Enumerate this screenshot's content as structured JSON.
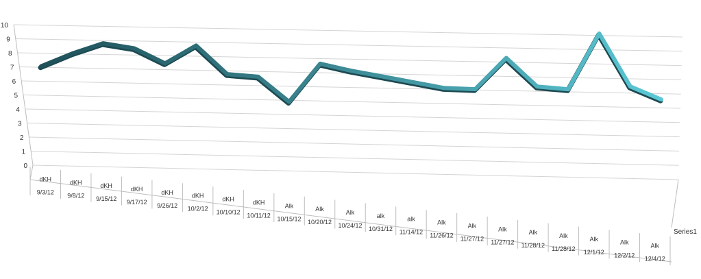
{
  "chart_data": {
    "type": "line",
    "ylim": [
      0,
      10
    ],
    "yticks": [
      "0",
      "1",
      "2",
      "3",
      "4",
      "5",
      "6",
      "7",
      "8",
      "9",
      "10"
    ],
    "grid": true,
    "categories": [
      {
        "top": "dKH",
        "bottom": "9/3/12"
      },
      {
        "top": "dKH",
        "bottom": "9/8/12"
      },
      {
        "top": "dKH",
        "bottom": "9/15/12"
      },
      {
        "top": "dKH",
        "bottom": "9/17/12"
      },
      {
        "top": "dKH",
        "bottom": "9/26/12"
      },
      {
        "top": "dKH",
        "bottom": "10/2/12"
      },
      {
        "top": "dKH",
        "bottom": "10/10/12"
      },
      {
        "top": "dKH",
        "bottom": "10/11/12"
      },
      {
        "top": "Alk",
        "bottom": "10/15/12"
      },
      {
        "top": "Alk",
        "bottom": "10/20/12"
      },
      {
        "top": "Alk",
        "bottom": "10/24/12"
      },
      {
        "top": "alk",
        "bottom": "10/31/12"
      },
      {
        "top": "alk",
        "bottom": "11/14/12"
      },
      {
        "top": "Alk",
        "bottom": "11/26/12"
      },
      {
        "top": "Alk",
        "bottom": "11/27/12"
      },
      {
        "top": "Alk",
        "bottom": "11/27/12"
      },
      {
        "top": "Alk",
        "bottom": "11/28/12"
      },
      {
        "top": "Alk",
        "bottom": "11/28/12"
      },
      {
        "top": "Alk",
        "bottom": "12/1/12"
      },
      {
        "top": "Alk",
        "bottom": "12/2/12"
      },
      {
        "top": "Alk",
        "bottom": "12/4/12"
      }
    ],
    "series": [
      {
        "name": "Series1",
        "values": [
          6.8,
          7.8,
          8.6,
          8.3,
          7.3,
          8.6,
          6.7,
          6.6,
          5.0,
          7.6,
          7.2,
          6.9,
          6.6,
          6.3,
          6.3,
          8.3,
          6.6,
          6.5,
          9.9,
          6.8,
          6.1
        ],
        "color_start": "#1f5058",
        "color_end": "#5bc8d6"
      }
    ],
    "gridline_color": "#d4d4d4",
    "axis_color": "#bdbdbd"
  }
}
